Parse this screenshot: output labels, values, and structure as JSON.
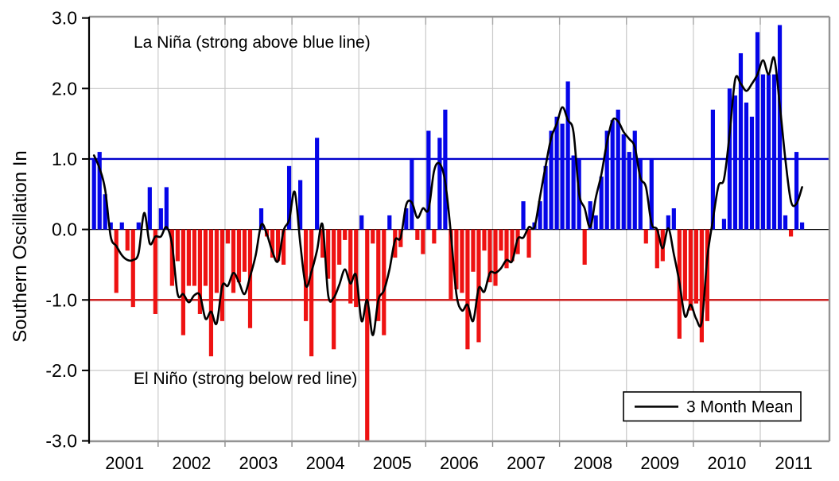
{
  "chart_data": {
    "type": "bar",
    "title": "",
    "ylabel": "Southern Oscillation In",
    "xlabel": "",
    "ylim": [
      -3.0,
      3.0
    ],
    "grid": true,
    "legend_position": "bottom-right",
    "yticks": [
      {
        "value": 3,
        "label": "3.0"
      },
      {
        "value": 2,
        "label": "2.0"
      },
      {
        "value": 1,
        "label": "1.0"
      },
      {
        "value": 0,
        "label": "0.0"
      },
      {
        "value": -1,
        "label": "-1.0"
      },
      {
        "value": -2,
        "label": "-2.0"
      },
      {
        "value": -3,
        "label": "-3.0"
      }
    ],
    "xtick_years": [
      "2001",
      "2002",
      "2003",
      "2004",
      "2005",
      "2006",
      "2007",
      "2008",
      "2009",
      "2010",
      "2011"
    ],
    "start_month": "2001-01",
    "end_month": "2011-08",
    "monthly_values": [
      1.0,
      1.1,
      0.5,
      0.1,
      -0.9,
      0.1,
      -0.3,
      -1.1,
      0.1,
      0.0,
      0.6,
      -1.2,
      0.3,
      0.6,
      -0.8,
      -0.45,
      -1.5,
      -0.8,
      -0.8,
      -1.2,
      -0.8,
      -1.8,
      -0.9,
      -1.3,
      -0.2,
      -0.9,
      -0.75,
      -0.6,
      -1.4,
      0.0,
      0.3,
      -0.1,
      -0.4,
      -0.45,
      -0.5,
      0.9,
      0.0,
      0.7,
      -1.3,
      -1.8,
      1.3,
      -0.4,
      -0.7,
      -1.7,
      -0.5,
      -0.15,
      -1.05,
      -1.1,
      0.2,
      -3.0,
      -0.2,
      -1.3,
      -1.5,
      0.2,
      -0.4,
      -0.25,
      0.3,
      1.0,
      -0.15,
      -0.35,
      1.4,
      -0.2,
      1.3,
      1.7,
      -1.0,
      -0.85,
      -0.9,
      -1.7,
      -0.6,
      -1.6,
      -0.3,
      -0.75,
      -0.8,
      -0.3,
      -0.55,
      -0.45,
      -0.35,
      0.4,
      -0.4,
      0.1,
      0.4,
      0.9,
      1.4,
      1.6,
      1.5,
      2.1,
      1.05,
      1.0,
      -0.5,
      0.4,
      0.2,
      0.75,
      1.4,
      1.55,
      1.7,
      1.35,
      1.1,
      1.4,
      1.0,
      -0.2,
      1.0,
      -0.55,
      -0.45,
      0.2,
      0.3,
      -1.55,
      -1.0,
      -1.15,
      -1.05,
      -1.6,
      -1.3,
      1.7,
      0.0,
      0.15,
      2.0,
      1.9,
      2.5,
      1.8,
      1.6,
      2.8,
      2.2,
      2.2,
      2.2,
      2.9,
      0.2,
      -0.1,
      1.1,
      0.1
    ],
    "series": [
      {
        "name": "3 Month Mean",
        "type": "line",
        "derived": "centered 3-month mean of monthly_values"
      }
    ],
    "thresholds": {
      "la_nina_line": 1.0,
      "el_nino_line": -1.0
    },
    "annotations": {
      "la_nina": "La Niña (strong above blue line)",
      "el_nino": "El Niño (strong below red line)"
    },
    "legend": {
      "label": "3 Month Mean"
    },
    "colors": {
      "bar_positive": "#0505e8",
      "bar_negative": "#ee1212",
      "la_nina_line": "#0000cc",
      "el_nino_line": "#cc2222",
      "mean_line": "#000000",
      "gridline": "#c9c9c9",
      "frame": "#949494",
      "axis": "#000000",
      "background": "#ffffff"
    }
  }
}
